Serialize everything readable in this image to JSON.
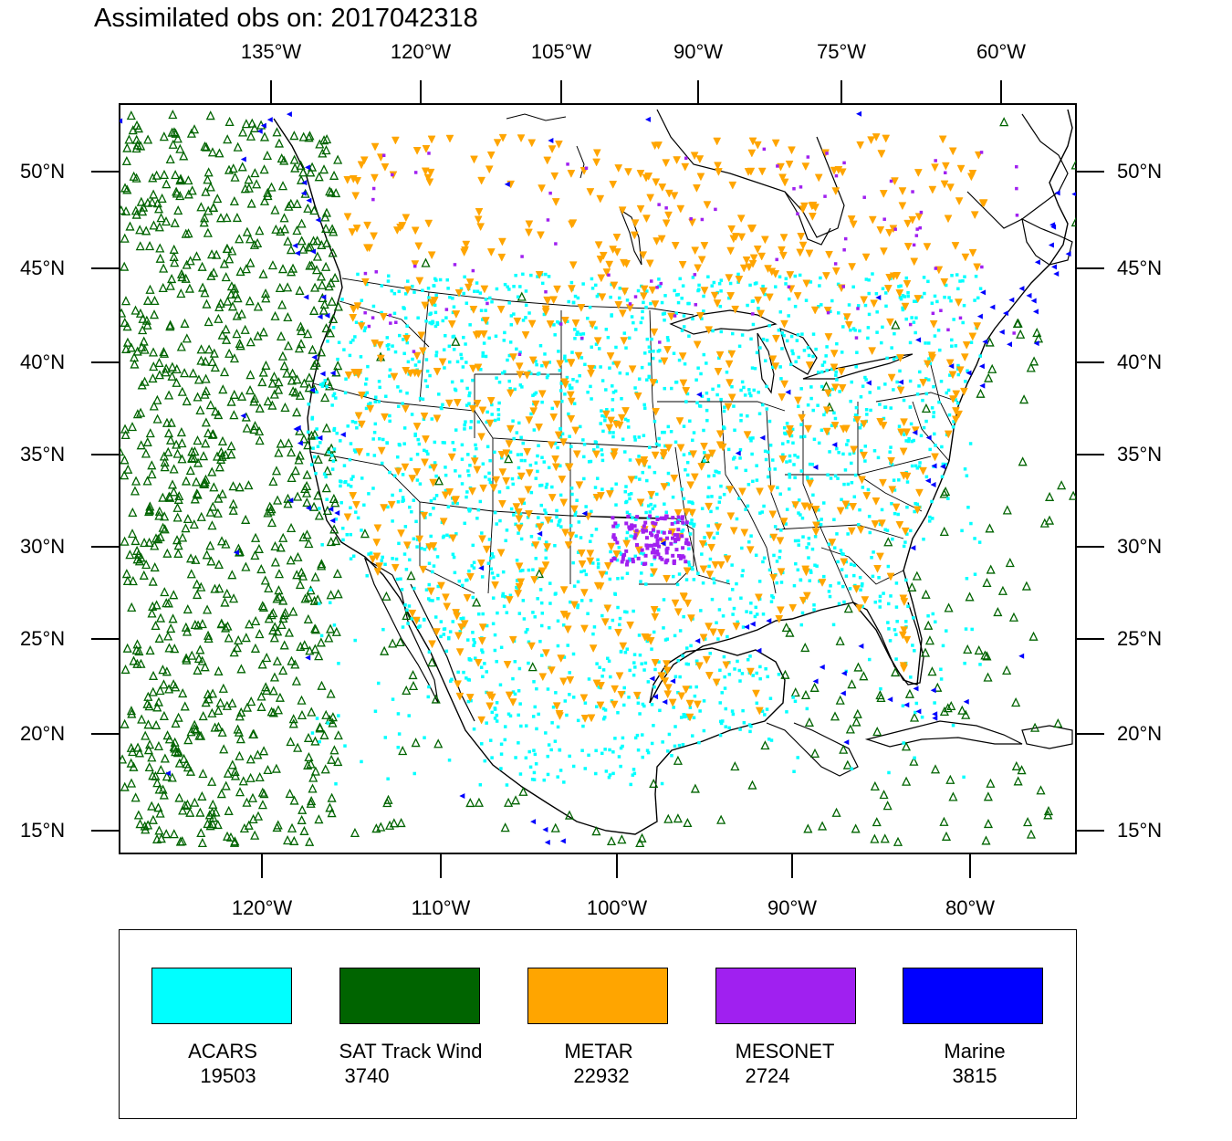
{
  "title": "Assimilated obs on: 2017042318",
  "top_lon_labels": [
    "135°W",
    "120°W",
    "105°W",
    "90°W",
    "75°W",
    "60°W"
  ],
  "bottom_lon_labels": [
    "120°W",
    "110°W",
    "100°W",
    "90°W",
    "80°W"
  ],
  "lat_labels": [
    "50°N",
    "45°N",
    "40°N",
    "35°N",
    "30°N",
    "25°N",
    "20°N",
    "15°N"
  ],
  "legend": [
    {
      "name": "ACARS",
      "count": "19503",
      "color": "#00FFFF"
    },
    {
      "name": "SAT Track Wind",
      "count": "3740",
      "color": "#006400"
    },
    {
      "name": "METAR",
      "count": "22932",
      "color": "#FFA500"
    },
    {
      "name": "MESONET",
      "count": "2724",
      "color": "#A020F0"
    },
    {
      "name": "Marine",
      "count": "3815",
      "color": "#0000FF"
    }
  ]
}
